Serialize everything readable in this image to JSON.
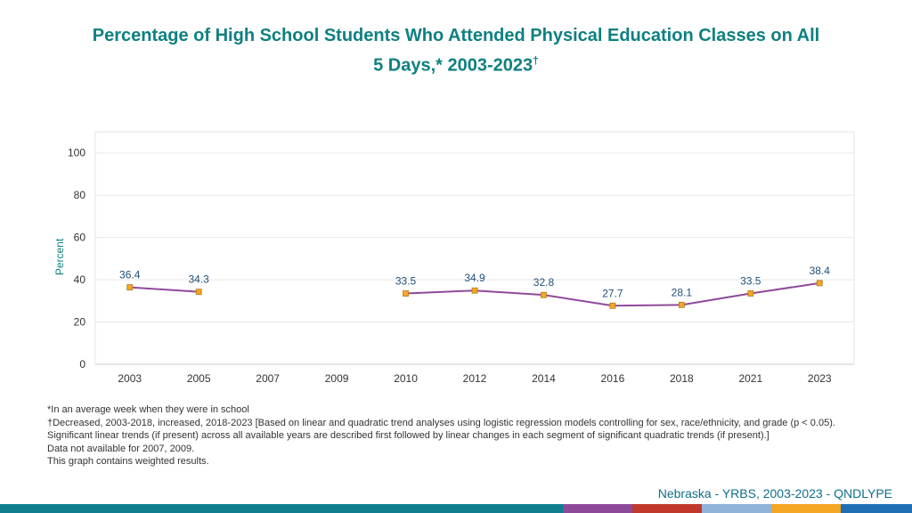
{
  "title_line1": "Percentage of High School Students Who Attended Physical Education Classes on All",
  "title_line2": "5 Days,* 2003-2023",
  "title_mark": "†",
  "chart_data": {
    "type": "line",
    "ylabel": "Percent",
    "ylim": [
      0,
      110
    ],
    "yticks": [
      0,
      20,
      40,
      60,
      80,
      100
    ],
    "categories": [
      "2003",
      "2005",
      "2007",
      "2009",
      "2010",
      "2012",
      "2014",
      "2016",
      "2018",
      "2021",
      "2023"
    ],
    "series": [
      {
        "values": [
          36.4,
          34.3,
          null,
          null,
          33.5,
          34.9,
          32.8,
          27.7,
          28.1,
          33.5,
          38.4
        ],
        "line_color": "#8e4a9a",
        "marker_color": "#f5a623"
      }
    ],
    "grid": true
  },
  "footnotes": [
    "*In an average week when they were in school",
    "†Decreased, 2003-2018, increased, 2018-2023 [Based on linear and quadratic trend analyses using logistic regression models controlling for sex, race/ethnicity, and grade (p < 0.05). Significant linear trends (if present) across all available years are described first followed by linear changes in each segment of significant quadratic trends (if present).]",
    "Data not available for 2007, 2009.",
    "This graph contains weighted results."
  ],
  "source": "Nebraska - YRBS, 2003-2023 - QNDLYPE",
  "bottom_bar_colors": [
    "#0f7f8f",
    "#8e4a9a",
    "#c0392b",
    "#8fb3d9",
    "#f5a623",
    "#1f6fb5"
  ]
}
